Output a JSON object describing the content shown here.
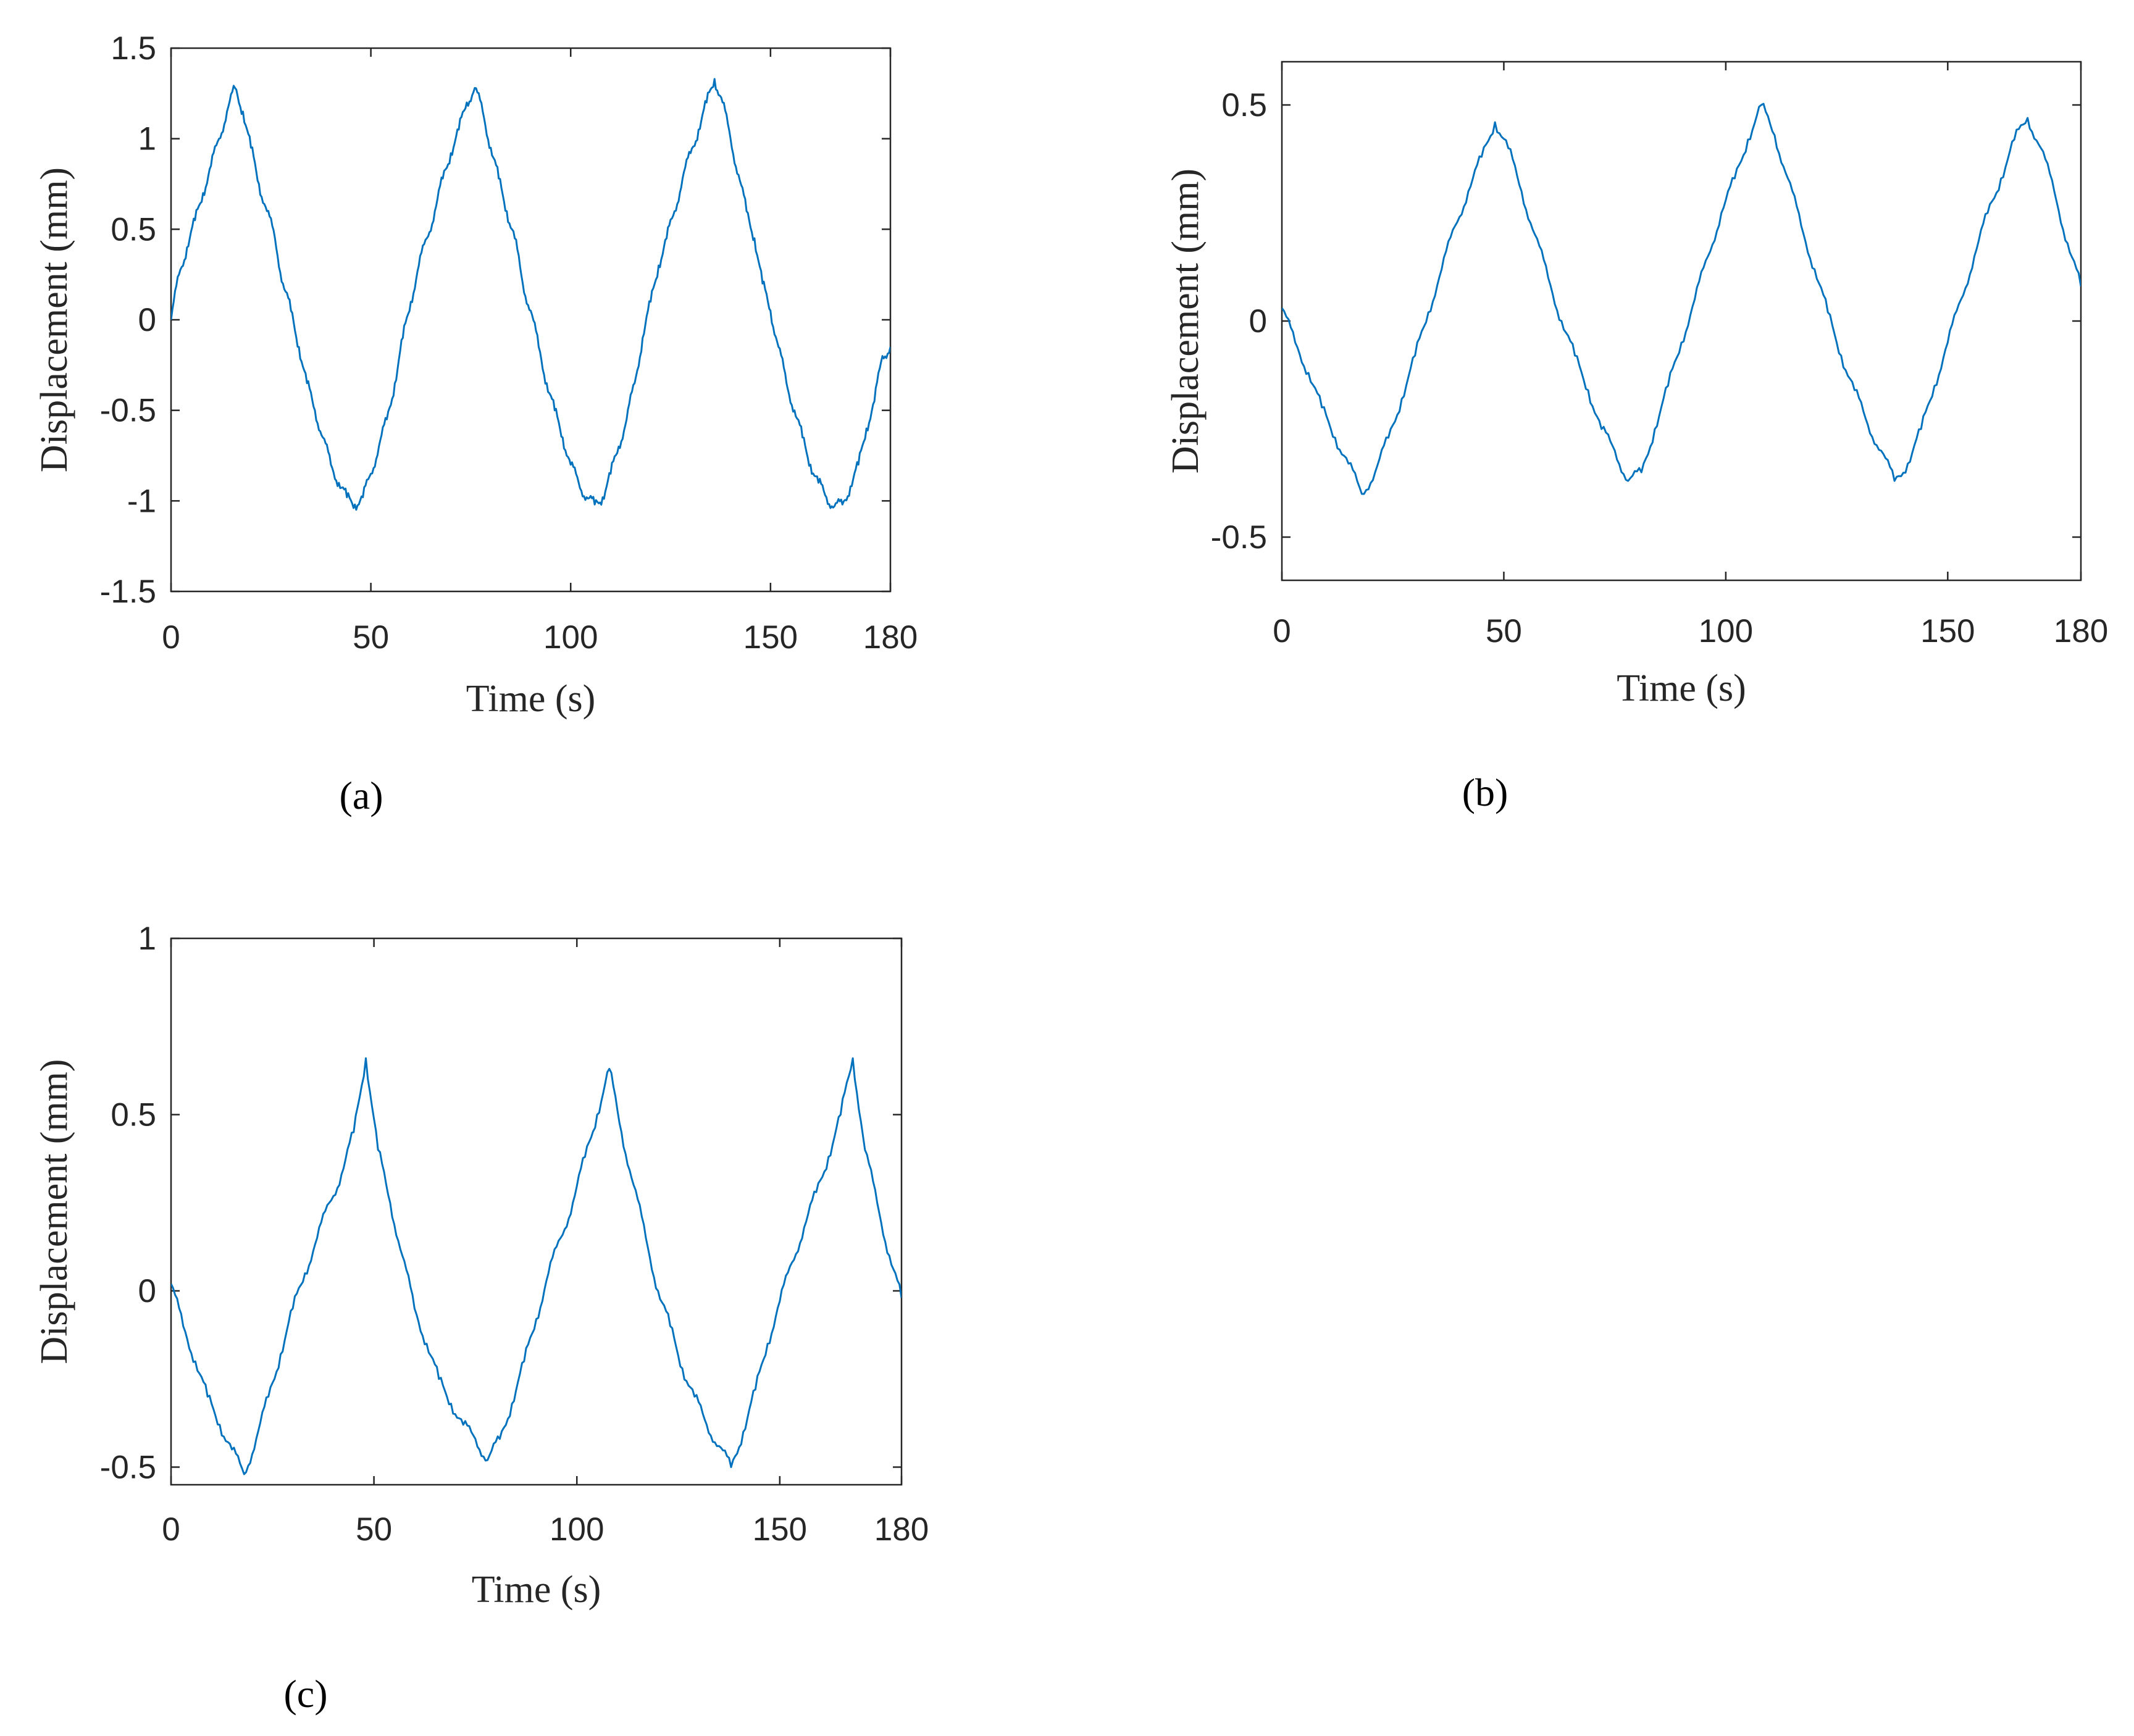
{
  "colors": {
    "series": "#0072BD",
    "axis": "#262626",
    "background": "#FFFFFF"
  },
  "chart_data": [
    {
      "type": "line",
      "caption": "(a)",
      "xlabel": "Time (s)",
      "ylabel": "Displacement (mm)",
      "xlim": [
        0,
        180
      ],
      "ylim": [
        -1.5,
        1.5
      ],
      "xticks": [
        0,
        50,
        100,
        150,
        180
      ],
      "xtick_labels": [
        "0",
        "50",
        "100",
        "150",
        "180"
      ],
      "yticks": [
        -1.5,
        -1,
        -0.5,
        0,
        0.5,
        1,
        1.5
      ],
      "ytick_labels": [
        "-1.5",
        "-1",
        "-0.5",
        "0",
        "0.5",
        "1",
        "1.5"
      ],
      "grid": false,
      "series": [
        {
          "x": [
            0,
            2,
            4,
            6,
            8,
            10,
            12,
            14,
            16,
            18,
            20,
            22,
            24,
            26,
            28,
            30,
            32,
            34,
            36,
            38,
            40,
            42,
            44,
            46,
            48,
            50,
            52,
            54,
            56,
            58,
            60,
            62,
            64,
            66,
            68,
            70,
            72,
            74,
            76,
            78,
            80,
            82,
            84,
            86,
            88,
            90,
            92,
            94,
            96,
            98,
            100,
            102,
            104,
            106,
            108,
            110,
            112,
            114,
            116,
            118,
            120,
            122,
            124,
            126,
            128,
            130,
            132,
            134,
            136,
            138,
            140,
            142,
            144,
            146,
            148,
            150,
            152,
            154,
            156,
            158,
            160,
            162,
            164,
            166,
            168,
            170,
            172,
            174,
            176,
            178,
            180
          ],
          "y": [
            0.0,
            0.25,
            0.4,
            0.55,
            0.7,
            0.85,
            1.0,
            1.15,
            1.28,
            1.15,
            0.95,
            0.75,
            0.6,
            0.45,
            0.2,
            0.05,
            -0.15,
            -0.35,
            -0.5,
            -0.65,
            -0.8,
            -0.9,
            -0.98,
            -1.02,
            -0.98,
            -0.85,
            -0.7,
            -0.55,
            -0.35,
            -0.1,
            0.1,
            0.3,
            0.45,
            0.6,
            0.78,
            0.92,
            1.05,
            1.2,
            1.28,
            1.15,
            0.95,
            0.78,
            0.6,
            0.45,
            0.2,
            0.05,
            -0.15,
            -0.35,
            -0.5,
            -0.65,
            -0.8,
            -0.9,
            -0.98,
            -1.02,
            -0.98,
            -0.85,
            -0.7,
            -0.55,
            -0.35,
            -0.1,
            0.1,
            0.3,
            0.45,
            0.6,
            0.78,
            0.92,
            1.05,
            1.2,
            1.33,
            1.2,
            1.0,
            0.8,
            0.6,
            0.45,
            0.2,
            0.05,
            -0.15,
            -0.35,
            -0.5,
            -0.65,
            -0.8,
            -0.9,
            -0.98,
            -1.03,
            -1.02,
            -0.92,
            -0.8,
            -0.6,
            -0.45,
            -0.2,
            -0.15
          ]
        }
      ]
    },
    {
      "type": "line",
      "caption": "(b)",
      "xlabel": "Time (s)",
      "ylabel": "Displacement (mm)",
      "xlim": [
        0,
        180
      ],
      "ylim": [
        -0.6,
        0.6
      ],
      "xticks": [
        0,
        50,
        100,
        150,
        180
      ],
      "xtick_labels": [
        "0",
        "50",
        "100",
        "150",
        "180"
      ],
      "yticks": [
        -0.5,
        0,
        0.5
      ],
      "ytick_labels": [
        "-0.5",
        "0",
        "0.5"
      ],
      "grid": false,
      "series": [
        {
          "x": [
            0,
            3,
            6,
            9,
            12,
            15,
            18,
            21,
            24,
            27,
            30,
            33,
            36,
            39,
            42,
            45,
            48,
            51,
            54,
            57,
            60,
            63,
            66,
            69,
            72,
            75,
            78,
            81,
            84,
            87,
            90,
            93,
            96,
            99,
            102,
            105,
            108,
            111,
            114,
            117,
            120,
            123,
            126,
            129,
            132,
            135,
            138,
            141,
            144,
            147,
            150,
            153,
            156,
            159,
            162,
            165,
            168,
            171,
            174,
            177,
            180
          ],
          "y": [
            0.03,
            -0.05,
            -0.12,
            -0.2,
            -0.27,
            -0.33,
            -0.4,
            -0.35,
            -0.27,
            -0.18,
            -0.08,
            0.02,
            0.12,
            0.22,
            0.3,
            0.38,
            0.46,
            0.4,
            0.3,
            0.2,
            0.1,
            0.0,
            -0.08,
            -0.16,
            -0.25,
            -0.3,
            -0.37,
            -0.35,
            -0.25,
            -0.15,
            -0.05,
            0.05,
            0.15,
            0.25,
            0.33,
            0.42,
            0.5,
            0.43,
            0.33,
            0.22,
            0.12,
            0.02,
            -0.08,
            -0.16,
            -0.24,
            -0.3,
            -0.37,
            -0.33,
            -0.25,
            -0.15,
            -0.05,
            0.05,
            0.15,
            0.25,
            0.33,
            0.42,
            0.47,
            0.4,
            0.3,
            0.18,
            0.08
          ]
        }
      ]
    },
    {
      "type": "line",
      "caption": "(c)",
      "xlabel": "Time (s)",
      "ylabel": "Displacement (mm)",
      "xlim": [
        0,
        180
      ],
      "ylim": [
        -0.55,
        1.0
      ],
      "xticks": [
        0,
        50,
        100,
        150,
        180
      ],
      "xtick_labels": [
        "0",
        "50",
        "100",
        "150",
        "180"
      ],
      "yticks": [
        -0.5,
        0,
        0.5,
        1
      ],
      "ytick_labels": [
        "-0.5",
        "0",
        "0.5",
        "1"
      ],
      "grid": false,
      "series": [
        {
          "x": [
            0,
            3,
            6,
            9,
            12,
            15,
            18,
            21,
            24,
            27,
            30,
            33,
            36,
            39,
            42,
            45,
            48,
            51,
            54,
            57,
            60,
            63,
            66,
            69,
            72,
            75,
            78,
            81,
            84,
            87,
            90,
            93,
            96,
            99,
            102,
            105,
            108,
            111,
            114,
            117,
            120,
            123,
            126,
            129,
            132,
            135,
            138,
            141,
            144,
            147,
            150,
            153,
            156,
            159,
            162,
            165,
            168,
            171,
            174,
            177,
            180
          ],
          "y": [
            0.02,
            -0.1,
            -0.2,
            -0.3,
            -0.38,
            -0.45,
            -0.52,
            -0.42,
            -0.3,
            -0.18,
            -0.05,
            0.05,
            0.15,
            0.25,
            0.33,
            0.45,
            0.66,
            0.4,
            0.25,
            0.1,
            -0.05,
            -0.15,
            -0.25,
            -0.32,
            -0.38,
            -0.42,
            -0.48,
            -0.42,
            -0.32,
            -0.2,
            -0.08,
            0.05,
            0.15,
            0.25,
            0.38,
            0.5,
            0.63,
            0.45,
            0.3,
            0.15,
            0.0,
            -0.1,
            -0.22,
            -0.3,
            -0.38,
            -0.44,
            -0.5,
            -0.4,
            -0.28,
            -0.15,
            -0.03,
            0.08,
            0.18,
            0.28,
            0.38,
            0.5,
            0.66,
            0.4,
            0.25,
            0.1,
            -0.02
          ]
        }
      ]
    }
  ]
}
